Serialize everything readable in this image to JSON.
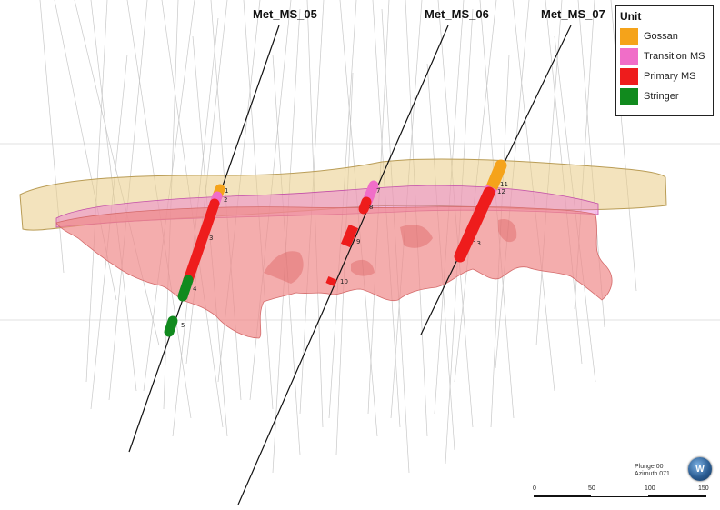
{
  "drillholes": [
    {
      "name": "Met_MS_05"
    },
    {
      "name": "Met_MS_06"
    },
    {
      "name": "Met_MS_07"
    }
  ],
  "intervals": [
    "1",
    "2",
    "3",
    "4",
    "5",
    "7",
    "8",
    "9",
    "10",
    "11",
    "12",
    "13"
  ],
  "legend": {
    "title": "Unit",
    "items": [
      {
        "label": "Gossan",
        "color": "#f5a31a"
      },
      {
        "label": "Transition MS",
        "color": "#f06ec8"
      },
      {
        "label": "Primary MS",
        "color": "#ee1c1c"
      },
      {
        "label": "Stringer",
        "color": "#118a1e"
      }
    ]
  },
  "view": {
    "plunge": "Plunge 00",
    "azimuth": "Azimuth 071"
  },
  "compass_label": "W",
  "scale": {
    "ticks": [
      "0",
      "50",
      "100",
      "150"
    ]
  }
}
